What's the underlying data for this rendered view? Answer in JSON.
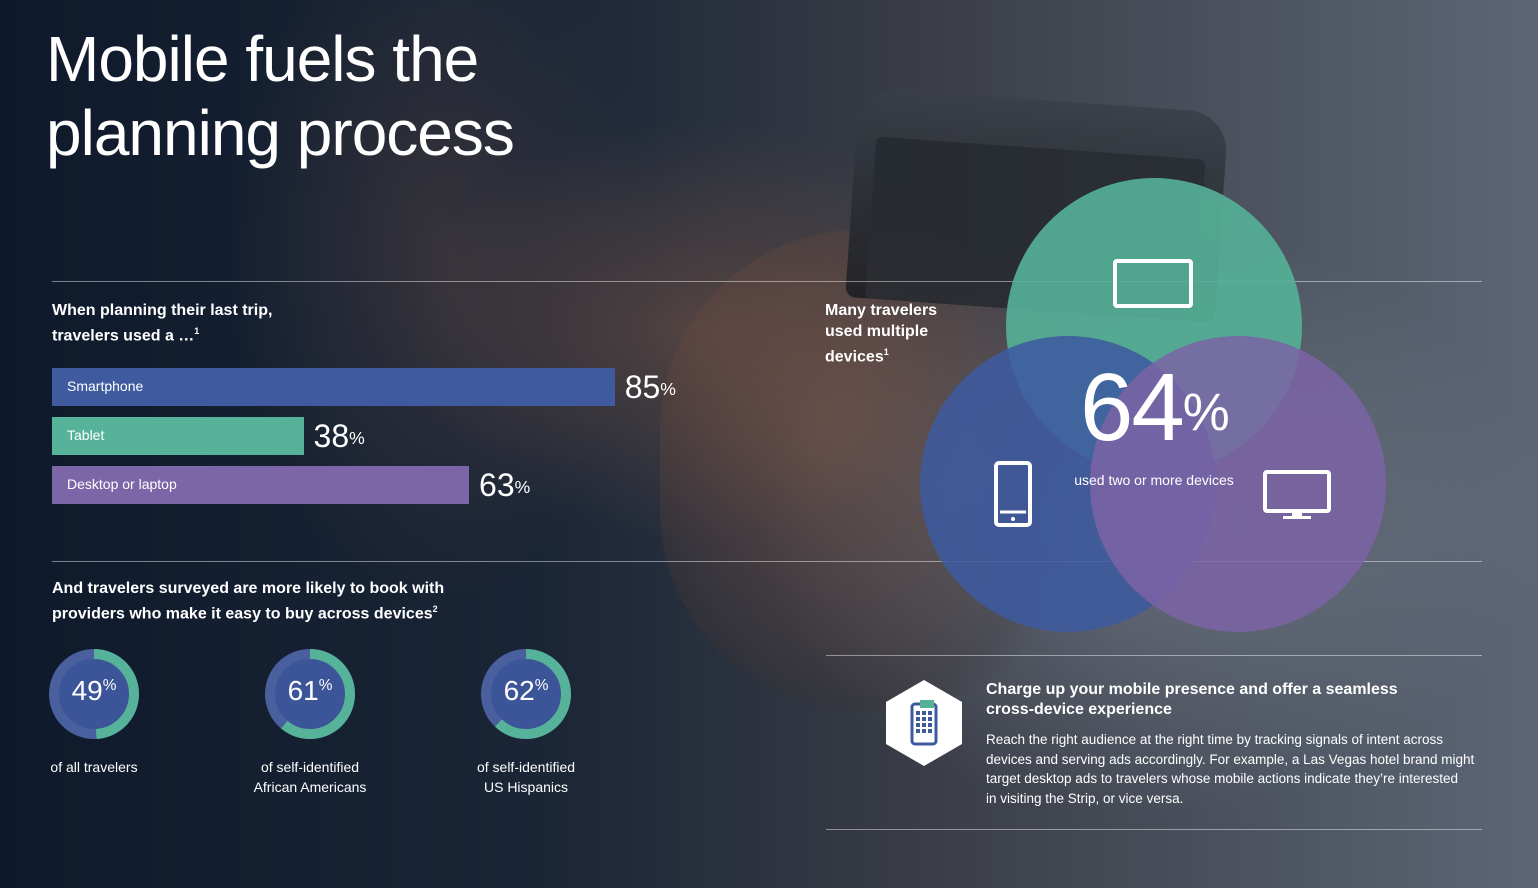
{
  "title": [
    "Mobile fuels the",
    "planning process"
  ],
  "bars_section": {
    "heading": [
      "When planning their last trip,",
      "travelers used a …"
    ],
    "heading_note": "1"
  },
  "rings_section": {
    "heading": [
      "And travelers surveyed are more likely to book with",
      "providers who make it easy to buy across devices"
    ],
    "heading_note": "2"
  },
  "venn_section": {
    "heading": [
      "Many travelers",
      "used multiple",
      "devices"
    ],
    "heading_note": "1",
    "value": "64",
    "unit": "%",
    "caption": "used two or more devices",
    "icons": [
      "tablet-icon",
      "smartphone-icon",
      "desktop-monitor-icon"
    ],
    "colors": {
      "tablet": "#55b096",
      "smartphone": "#3e5a9e",
      "desktop": "#7b64a6"
    }
  },
  "callout": {
    "icon": "mobile-apps-icon",
    "title": [
      "Charge up your mobile presence and offer a seamless",
      "cross-device experience"
    ],
    "body": [
      "Reach the right audience at the right time by tracking signals of intent across",
      "devices and serving ads accordingly. For example, a Las Vegas hotel brand might",
      "target desktop ads to travelers whose mobile actions indicate they’re interested",
      "in visiting the Strip, or vice versa."
    ]
  },
  "chart_data": [
    {
      "type": "bar",
      "orientation": "horizontal",
      "categories": [
        "Smartphone",
        "Tablet",
        "Desktop or laptop"
      ],
      "values": [
        85,
        38,
        63
      ],
      "value_labels": [
        "85",
        "38",
        "63"
      ],
      "unit": "%",
      "colors": [
        "#3f5a9f",
        "#56b39a",
        "#7d66a8"
      ],
      "xlim": [
        0,
        100
      ]
    },
    {
      "type": "pie",
      "style": "donut",
      "items": [
        {
          "value": 49,
          "label": "49",
          "caption": [
            "of all travelers"
          ]
        },
        {
          "value": 61,
          "label": "61",
          "caption": [
            "of self-identified",
            "African Americans"
          ]
        },
        {
          "value": 62,
          "label": "62",
          "caption": [
            "of self-identified",
            "US Hispanics"
          ]
        }
      ],
      "unit": "%",
      "colors": {
        "fill": "#56b39a",
        "track": "#4a5f9e",
        "center": "#3c5498"
      }
    }
  ]
}
